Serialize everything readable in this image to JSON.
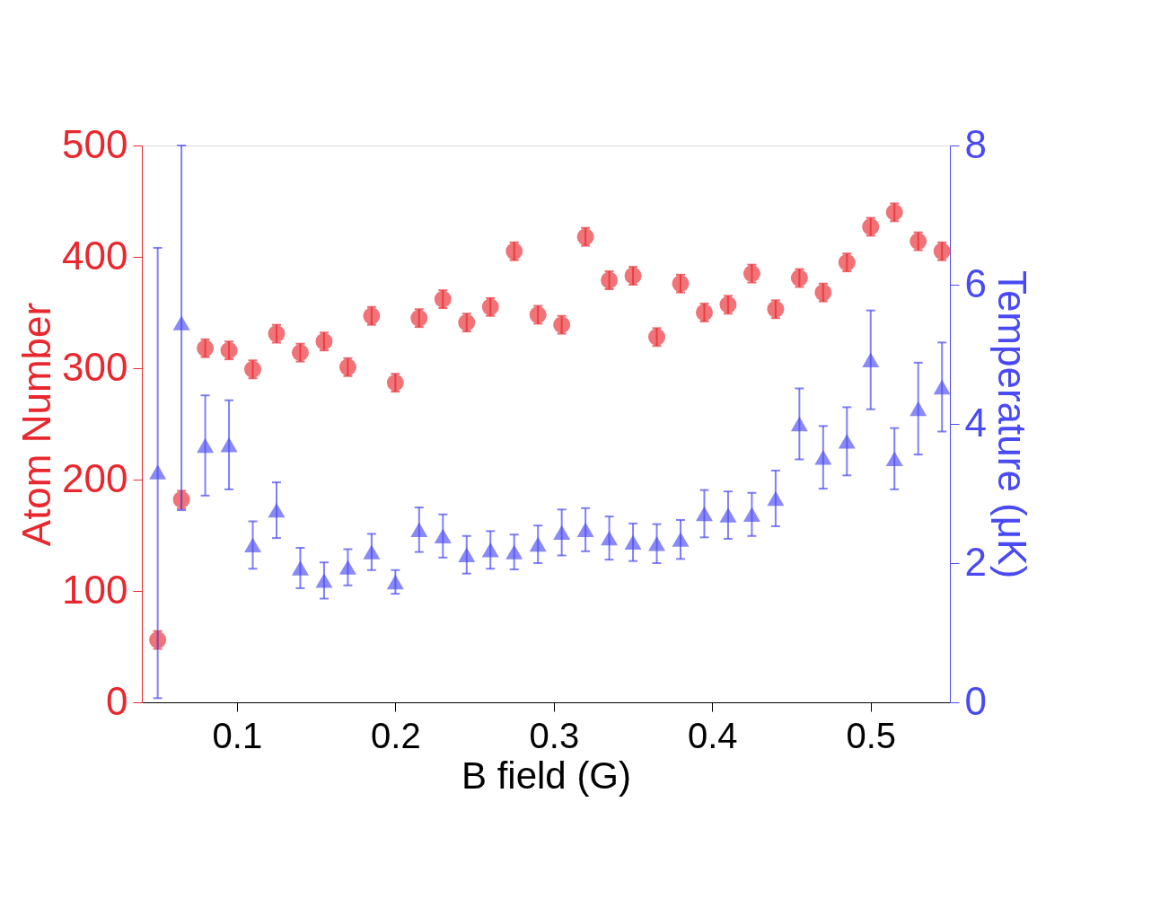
{
  "chart_data": {
    "type": "scatter",
    "xlabel": "B field (G)",
    "ylabel": "Atom Number",
    "y2label": "Temperature (μK)",
    "x": [
      0.05,
      0.065,
      0.08,
      0.095,
      0.11,
      0.125,
      0.14,
      0.155,
      0.17,
      0.185,
      0.2,
      0.215,
      0.23,
      0.245,
      0.26,
      0.275,
      0.29,
      0.305,
      0.32,
      0.335,
      0.35,
      0.365,
      0.38,
      0.395,
      0.41,
      0.425,
      0.44,
      0.455,
      0.47,
      0.485,
      0.5,
      0.515,
      0.53,
      0.545
    ],
    "series": [
      {
        "color": "#e8282e",
        "marker": "circle",
        "values": [
          56,
          182,
          318,
          316,
          299,
          331,
          314,
          324,
          301,
          347,
          287,
          345,
          362,
          341,
          355,
          405,
          348,
          339,
          418,
          379,
          383,
          328,
          376,
          350,
          357,
          385,
          353,
          381,
          368,
          395,
          427,
          440,
          414,
          405
        ],
        "errors": [
          8,
          8,
          8,
          8,
          8,
          8,
          8,
          8,
          8,
          8,
          8,
          8,
          8,
          8,
          8,
          8,
          8,
          8,
          8,
          8,
          8,
          8,
          8,
          8,
          8,
          8,
          8,
          8,
          8,
          8,
          8,
          8,
          8,
          8
        ]
      },
      {
        "color": "#4a4af5",
        "marker": "triangle",
        "axis": "y2",
        "values": [
          3.31,
          5.45,
          3.69,
          3.7,
          2.26,
          2.76,
          1.93,
          1.75,
          1.94,
          2.16,
          1.73,
          2.48,
          2.39,
          2.12,
          2.19,
          2.16,
          2.27,
          2.44,
          2.48,
          2.36,
          2.3,
          2.28,
          2.34,
          2.71,
          2.69,
          2.7,
          2.93,
          4.0,
          3.52,
          3.75,
          4.92,
          3.5,
          4.22,
          4.53
        ],
        "errors": [
          [
            0.06,
            6.53
          ],
          [
            2.76,
            8
          ],
          0.72,
          0.64,
          0.34,
          0.4,
          0.29,
          0.26,
          0.26,
          0.26,
          0.17,
          0.32,
          0.31,
          0.27,
          0.27,
          0.25,
          0.27,
          0.33,
          0.31,
          0.31,
          0.27,
          0.28,
          0.28,
          0.34,
          0.34,
          0.31,
          0.4,
          0.51,
          0.45,
          0.49,
          0.71,
          0.44,
          0.66,
          0.64
        ]
      }
    ],
    "xlim": [
      0.04,
      0.55
    ],
    "xticks": [
      0.1,
      0.2,
      0.3,
      0.4,
      0.5
    ],
    "ylim": [
      0,
      500
    ],
    "yticks": [
      0,
      100,
      200,
      300,
      400,
      500
    ],
    "y2lim": [
      0,
      8
    ],
    "y2ticks": [
      0,
      2,
      4,
      6,
      8
    ],
    "grid": false,
    "legend": false
  }
}
